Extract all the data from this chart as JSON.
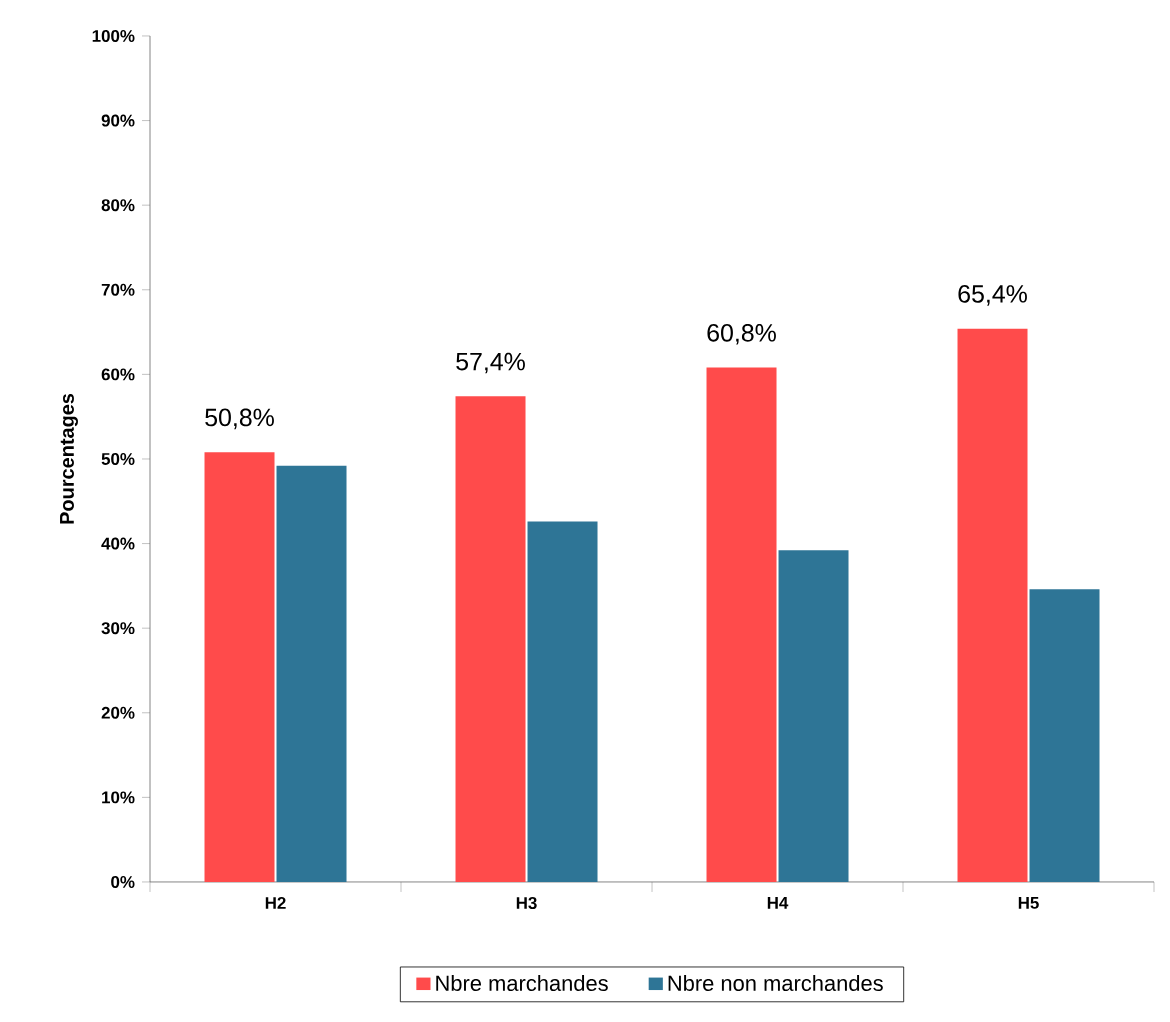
{
  "chart_data": {
    "type": "bar",
    "ylabel": "Pourcentages",
    "categories": [
      "H2",
      "H3",
      "H4",
      "H5"
    ],
    "series": [
      {
        "name": "Nbre marchandes",
        "color": "#ff4b4b",
        "values": [
          50.8,
          57.4,
          60.8,
          65.4
        ],
        "value_labels": [
          "50,8%",
          "57,4%",
          "60,8%",
          "65,4%"
        ]
      },
      {
        "name": "Nbre non marchandes",
        "color": "#2e7596",
        "values": [
          49.2,
          42.6,
          39.2,
          34.6
        ]
      }
    ],
    "ylim": [
      0,
      100
    ],
    "yticks": [
      {
        "value": 0,
        "label": "0%"
      },
      {
        "value": 10,
        "label": "10%"
      },
      {
        "value": 20,
        "label": "20%"
      },
      {
        "value": 30,
        "label": "30%"
      },
      {
        "value": 40,
        "label": "40%"
      },
      {
        "value": 50,
        "label": "50%"
      },
      {
        "value": 60,
        "label": "60%"
      },
      {
        "value": 70,
        "label": "70%"
      },
      {
        "value": 80,
        "label": "80%"
      },
      {
        "value": 90,
        "label": "90%"
      },
      {
        "value": 100,
        "label": "100%"
      }
    ],
    "grid": false,
    "legend": "bottom"
  }
}
